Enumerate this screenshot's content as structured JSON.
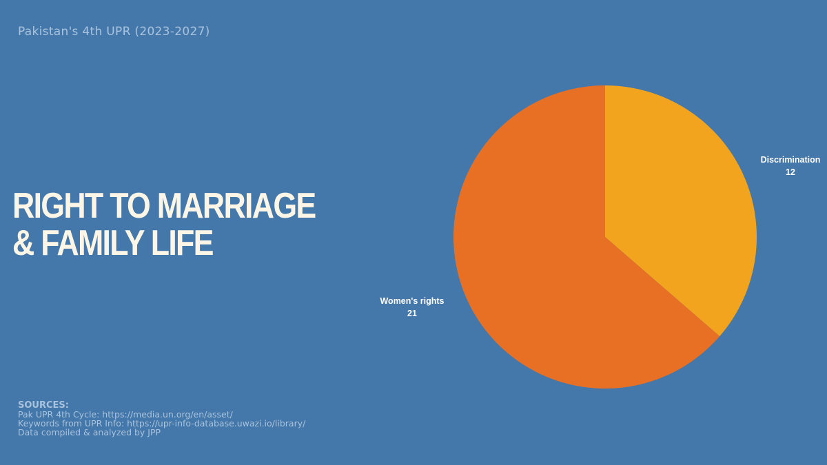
{
  "subtitle": "Pakistan's 4th UPR (2023-2027)",
  "headline": {
    "line1": "RIGHT TO MARRIAGE",
    "line2": "& FAMILY LIFE"
  },
  "sources": {
    "title": "SOURCES:",
    "lines": [
      "Pak UPR 4th Cycle: https://media.un.org/en/asset/",
      "Keywords from UPR Info: https://upr-info-database.uwazi.io/library/",
      "Data compiled & analyzed by JPP"
    ]
  },
  "colors": {
    "background": "#4477aa",
    "discrimination": "#f2a41f",
    "womens_rights": "#e87024"
  },
  "chart_data": {
    "type": "pie",
    "categories": [
      "Discrimination",
      "Women's rights"
    ],
    "values": [
      12,
      21
    ],
    "colors": [
      "#f2a41f",
      "#e87024"
    ]
  }
}
